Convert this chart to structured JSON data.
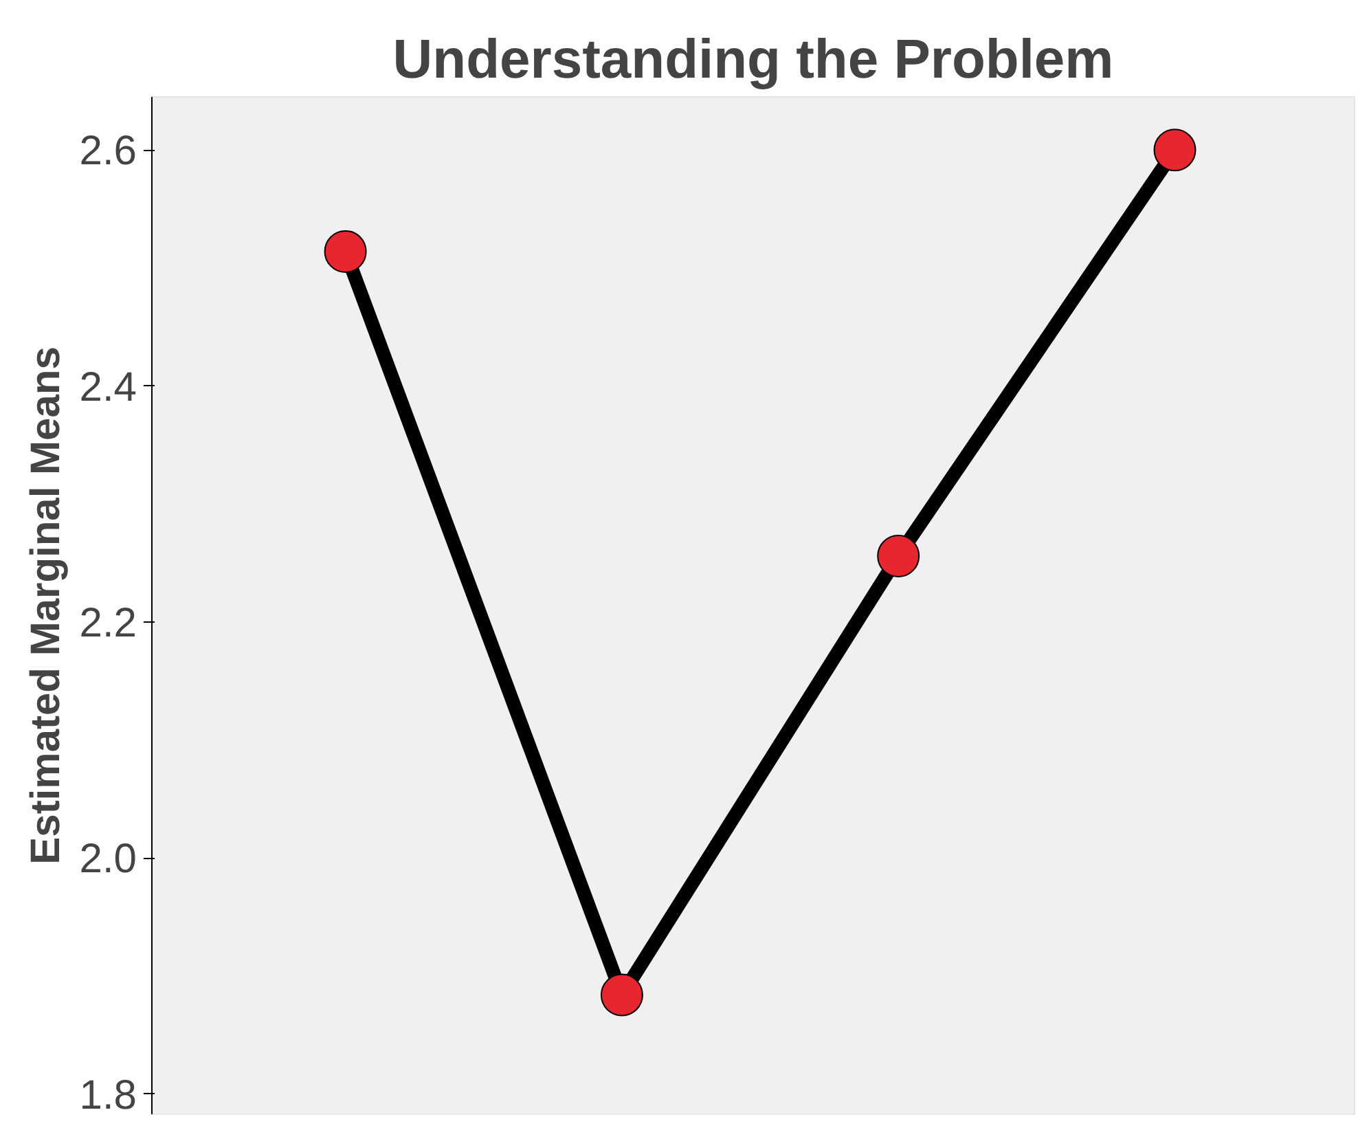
{
  "chart_data": {
    "type": "line",
    "title": "Understanding the Problem",
    "ylabel": "Estimated Marginal Means",
    "categories": [
      null,
      null,
      null,
      null
    ],
    "series": [
      {
        "color": "#000000",
        "colors": [
          "#e8262f",
          "#e8262f",
          "#e8262f",
          "#e8262f"
        ],
        "values": [
          2.514,
          1.884,
          2.256,
          2.6
        ]
      }
    ],
    "ylim": [
      1.783,
      2.645
    ],
    "yticks": [
      {
        "value": 1.8,
        "label": "1.8"
      },
      {
        "value": 2.0,
        "label": "2.0"
      },
      {
        "value": 2.2,
        "label": "2.2"
      },
      {
        "value": 2.4,
        "label": "2.4"
      },
      {
        "value": 2.6,
        "label": "2.6"
      }
    ],
    "grid": false,
    "marker": "circle",
    "line_style": "solid",
    "tick_labels": "y"
  }
}
